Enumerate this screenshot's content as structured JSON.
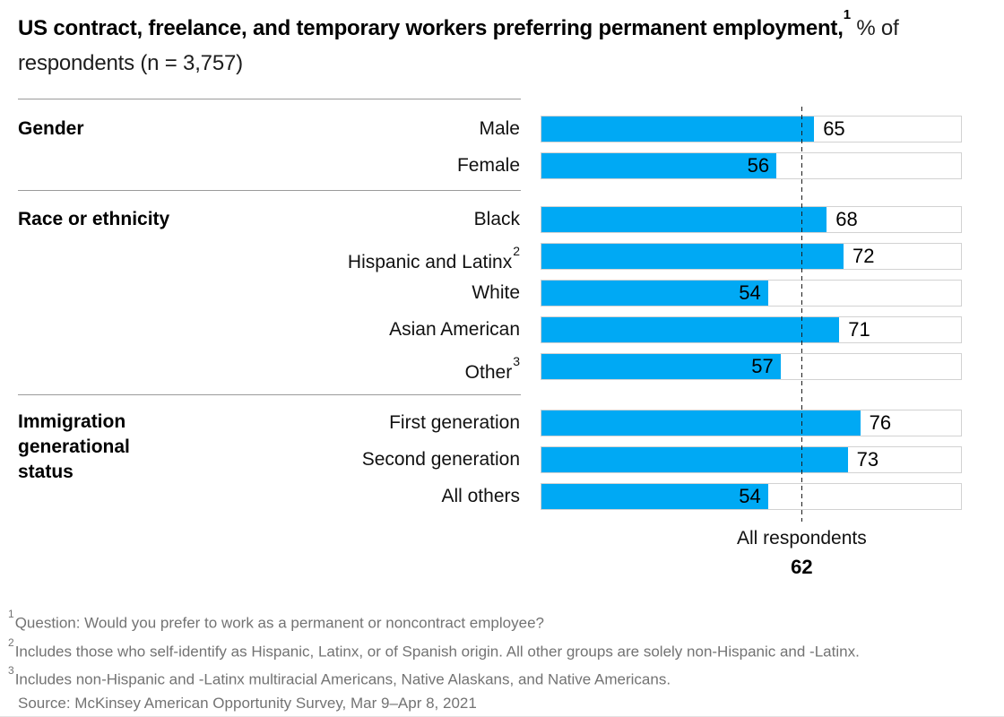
{
  "title": {
    "bold": "US contract, freelance, and temporary workers preferring permanent employment,",
    "sup": "1",
    "regular": "% of respondents (n = 3,757)"
  },
  "chart_data": {
    "type": "bar",
    "orientation": "horizontal",
    "unit": "% of respondents",
    "xlim": [
      0,
      100
    ],
    "bar_color": "#00a9f4",
    "track_border_color": "#d2d2d2",
    "divider_color": "#9b9b9b",
    "value_labels_shown": true,
    "reference_line": {
      "label": "All respondents",
      "value": 62
    },
    "sections": [
      {
        "label": "Gender",
        "rows": [
          {
            "label": "Male",
            "value": 65
          },
          {
            "label": "Female",
            "value": 56
          }
        ]
      },
      {
        "label": "Race or ethnicity",
        "rows": [
          {
            "label": "Black",
            "value": 68
          },
          {
            "label": "Hispanic and Latinx",
            "sup": "2",
            "value": 72
          },
          {
            "label": "White",
            "value": 54
          },
          {
            "label": "Asian American",
            "value": 71
          },
          {
            "label": "Other",
            "sup": "3",
            "value": 57
          }
        ]
      },
      {
        "label": "Immigration generational status",
        "rows": [
          {
            "label": "First generation",
            "value": 76
          },
          {
            "label": "Second generation",
            "value": 73
          },
          {
            "label": "All others",
            "value": 54
          }
        ]
      }
    ]
  },
  "footnotes": [
    {
      "sup": "1",
      "text": "Question: Would you prefer to work as a permanent or noncontract employee?"
    },
    {
      "sup": "2",
      "text": "Includes those who self-identify as Hispanic, Latinx, or of Spanish origin. All other groups are solely non-Hispanic and -Latinx."
    },
    {
      "sup": "3",
      "text": "Includes non-Hispanic and -Latinx multiracial Americans, Native Alaskans, and Native Americans."
    }
  ],
  "source": "Source: McKinsey American Opportunity Survey, Mar 9–Apr 8, 2021"
}
